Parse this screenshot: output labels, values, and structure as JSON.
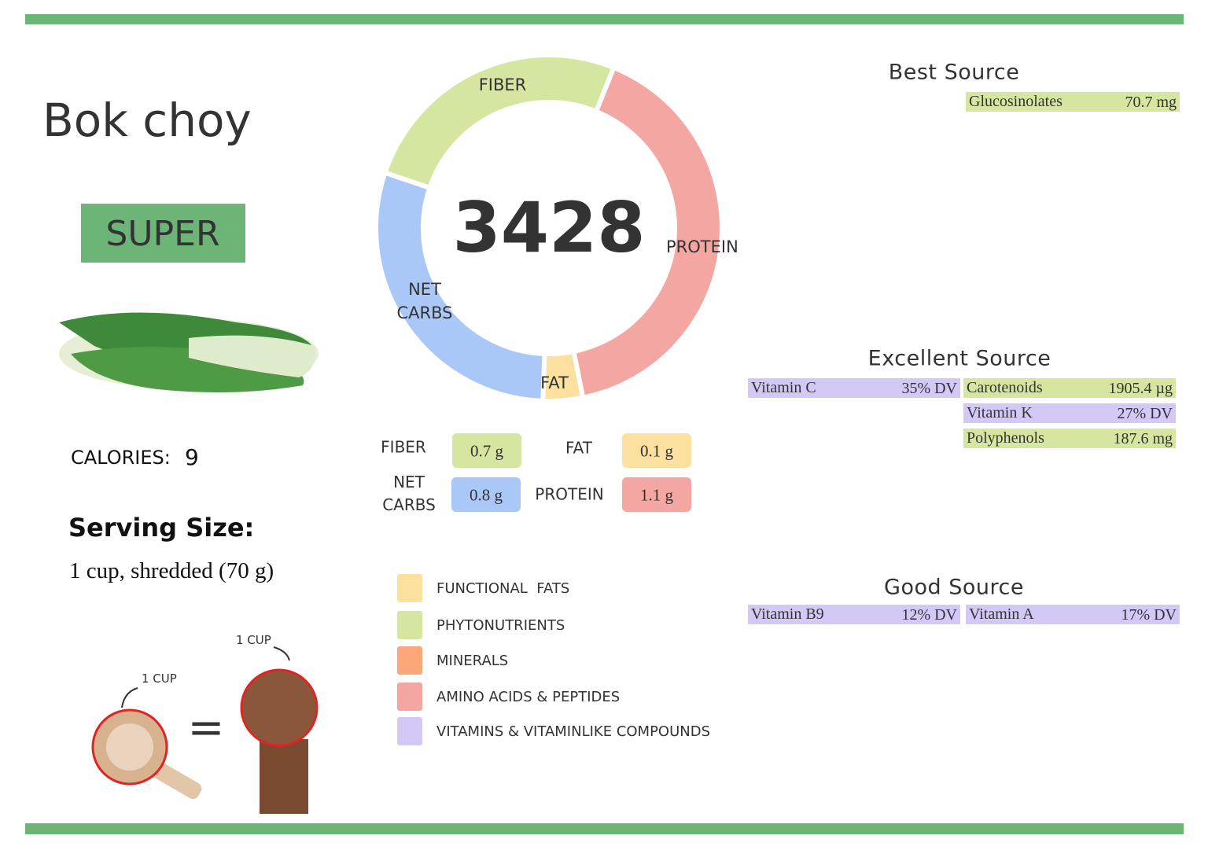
{
  "title": "Bok choy",
  "rating": "SUPER",
  "calories": {
    "label": "CALORIES:",
    "value": 9
  },
  "serving": {
    "heading": "Serving Size:",
    "text": "1 cup, shredded (70 g)"
  },
  "measure": {
    "cup_label": "1 CUP",
    "fist_label": "1 CUP",
    "equals": "="
  },
  "score": 3428,
  "macros": [
    {
      "name": "FIBER",
      "value": 0.7,
      "value_label": "0.7 g",
      "color": "#d5e6a0"
    },
    {
      "name": "NET CARBS",
      "value": 0.8,
      "value_label": "0.8 g",
      "color": "#a9c8f7"
    },
    {
      "name": "FAT",
      "value": 0.1,
      "value_label": "0.1 g",
      "color": "#fbe0a0"
    },
    {
      "name": "PROTEIN",
      "value": 1.1,
      "value_label": "1.1 g",
      "color": "#f4a6a3"
    }
  ],
  "legend": [
    {
      "label": "FUNCTIONAL  FATS",
      "color": "#fbe0a0"
    },
    {
      "label": "PHYTONUTRIENTS",
      "color": "#d5e6a0"
    },
    {
      "label": "MINERALS",
      "color": "#fba77a"
    },
    {
      "label": "AMINO ACIDS & PEPTIDES",
      "color": "#f4a6a3"
    },
    {
      "label": "VITAMINS & VITAMINLIKE COMPOUNDS",
      "color": "#d4c8f7"
    }
  ],
  "sources": [
    {
      "heading": "Best Source",
      "items": [
        {
          "name": "Glucosinolates",
          "amount": "70.7 mg",
          "color": "#d5e6a0"
        }
      ]
    },
    {
      "heading": "Excellent Source",
      "items": [
        {
          "name": "Vitamin C",
          "amount": "35% DV",
          "color": "#d4c8f7"
        },
        {
          "name": "Carotenoids",
          "amount": "1905.4 µg",
          "color": "#d5e6a0"
        },
        {
          "name": "Vitamin K",
          "amount": "27% DV",
          "color": "#d4c8f7"
        },
        {
          "name": "Polyphenols",
          "amount": "187.6 mg",
          "color": "#d5e6a0"
        }
      ]
    },
    {
      "heading": "Good Source",
      "items": [
        {
          "name": "Vitamin B9",
          "amount": "12% DV",
          "color": "#d4c8f7"
        },
        {
          "name": "Vitamin A",
          "amount": "17% DV",
          "color": "#d4c8f7"
        }
      ]
    }
  ]
}
